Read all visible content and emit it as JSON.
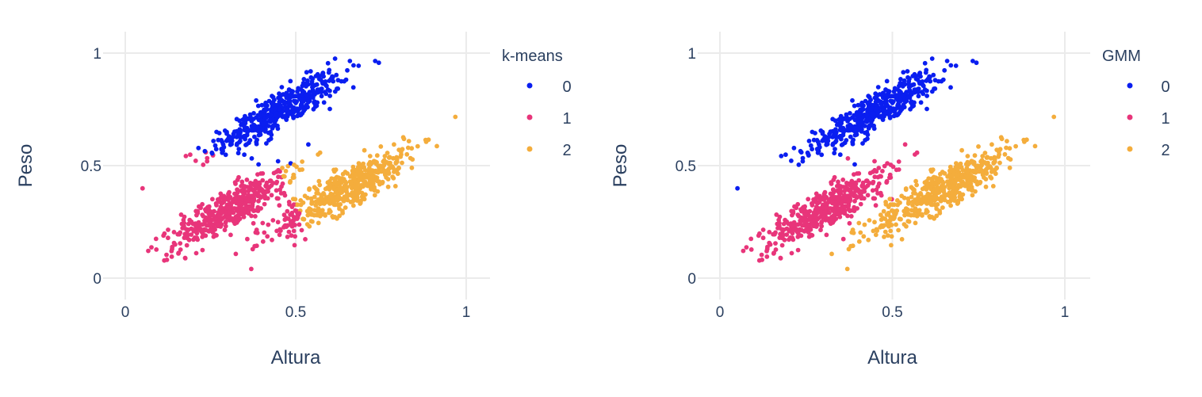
{
  "chart_data": [
    {
      "type": "scatter",
      "title": "",
      "xlabel": "Altura",
      "ylabel": "Peso",
      "xlim": [
        0,
        1
      ],
      "ylim": [
        0,
        1
      ],
      "xticks": [
        "0",
        "0.5",
        "1"
      ],
      "yticks": [
        "0",
        "0.5",
        "1"
      ],
      "xtick_values": [
        0,
        0.5,
        1
      ],
      "ytick_values": [
        0,
        0.5,
        1
      ],
      "grid": true,
      "legend": {
        "title": "k-means",
        "placement": "right",
        "entries": [
          "0",
          "1",
          "2"
        ]
      },
      "labeling": "nearest-centroid",
      "centroids": [
        [
          0.45,
          0.72
        ],
        [
          0.3,
          0.3
        ],
        [
          0.68,
          0.42
        ]
      ]
    },
    {
      "type": "scatter",
      "title": "",
      "xlabel": "Altura",
      "ylabel": "Peso",
      "xlim": [
        0,
        1
      ],
      "ylim": [
        0,
        1
      ],
      "xticks": [
        "0",
        "0.5",
        "1"
      ],
      "yticks": [
        "0",
        "0.5",
        "1"
      ],
      "xtick_values": [
        0,
        0.5,
        1
      ],
      "ytick_values": [
        0,
        0.5,
        1
      ],
      "grid": true,
      "legend": {
        "title": "GMM",
        "placement": "right",
        "entries": [
          "0",
          "1",
          "2"
        ]
      },
      "labeling": "true-cluster"
    }
  ],
  "clusters": [
    {
      "center": [
        0.45,
        0.74
      ],
      "direction": [
        0.74,
        0.67
      ],
      "sd_along": 0.13,
      "sd_perp": 0.032,
      "n": 450
    },
    {
      "center": [
        0.31,
        0.31
      ],
      "direction": [
        0.72,
        0.7
      ],
      "sd_along": 0.12,
      "sd_perp": 0.034,
      "n": 450
    },
    {
      "center": [
        0.65,
        0.4
      ],
      "direction": [
        0.73,
        0.68
      ],
      "sd_along": 0.14,
      "sd_perp": 0.034,
      "n": 500
    }
  ],
  "colors": [
    "#0a1ef0",
    "#e8357a",
    "#f4ad3c"
  ]
}
